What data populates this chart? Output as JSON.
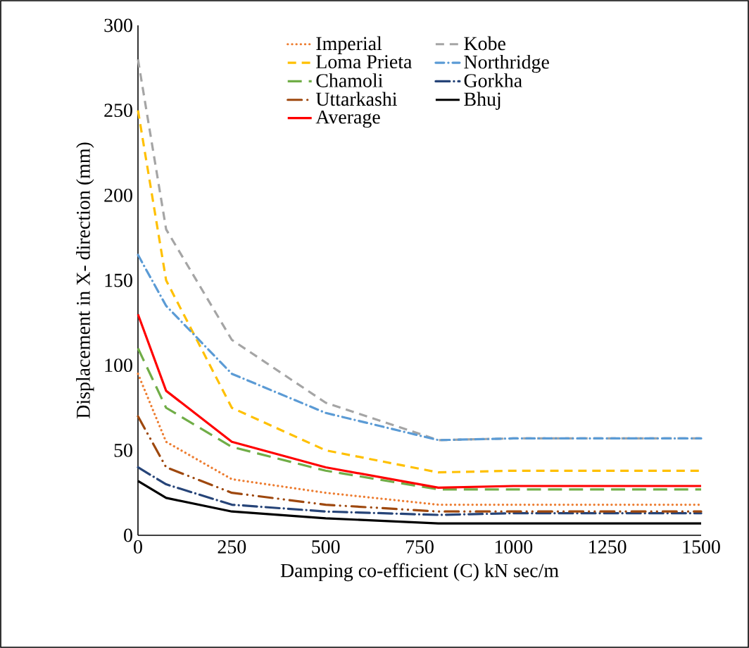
{
  "chart_data": {
    "type": "line",
    "xlabel": "Damping co-efficient (C) kN sec/m",
    "ylabel": "Displacement in X- direction (mm)",
    "x": [
      0,
      75,
      250,
      500,
      800,
      1000,
      1250,
      1500
    ],
    "series": [
      {
        "name": "Imperial",
        "color": "#ed7d31",
        "line_style": "dotted",
        "values": [
          95,
          55,
          33,
          25,
          18,
          18,
          18,
          18
        ]
      },
      {
        "name": "Kobe",
        "color": "#a5a5a5",
        "line_style": "dashed",
        "values": [
          280,
          180,
          115,
          78,
          56,
          57,
          57,
          57
        ]
      },
      {
        "name": "Loma Prieta",
        "color": "#ffc000",
        "line_style": "dashed",
        "values": [
          250,
          150,
          75,
          50,
          37,
          38,
          38,
          38
        ]
      },
      {
        "name": "Northridge",
        "color": "#5b9bd5",
        "line_style": "dashdot",
        "values": [
          165,
          135,
          95,
          72,
          56,
          57,
          57,
          57
        ]
      },
      {
        "name": "Chamoli",
        "color": "#70ad47",
        "line_style": "longdash",
        "values": [
          110,
          75,
          52,
          38,
          27,
          27,
          27,
          27
        ]
      },
      {
        "name": "Gorkha",
        "color": "#264478",
        "line_style": "longdashdot",
        "values": [
          40,
          30,
          18,
          14,
          12,
          13,
          13,
          13
        ]
      },
      {
        "name": "Uttarkashi",
        "color": "#9e480e",
        "line_style": "dashdotdot",
        "values": [
          70,
          40,
          25,
          18,
          14,
          14,
          14,
          14
        ]
      },
      {
        "name": "Bhuj",
        "color": "#000000",
        "line_style": "solid",
        "values": [
          32,
          22,
          14,
          10,
          7,
          7,
          7,
          7
        ]
      },
      {
        "name": "Average",
        "color": "#ff0000",
        "line_style": "solid",
        "values": [
          130,
          85,
          55,
          40,
          28,
          29,
          29,
          29
        ]
      }
    ],
    "xlim": [
      0,
      1500
    ],
    "xticks": [
      0,
      250,
      500,
      750,
      1000,
      1250,
      1500
    ],
    "ylim": [
      0,
      300
    ],
    "yticks": [
      0,
      50,
      100,
      150,
      200,
      250,
      300
    ],
    "legend": "top",
    "grid": false,
    "marker": "none"
  }
}
